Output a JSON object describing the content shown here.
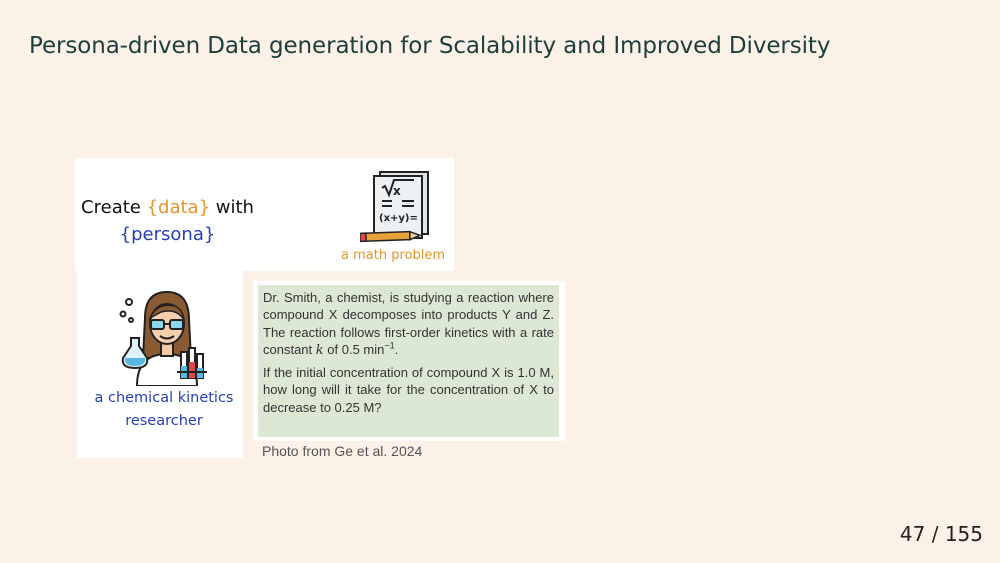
{
  "slide": {
    "title": "Persona-driven Data generation for Scalability and Improved Diversity",
    "page_current": "47",
    "page_sep": " / ",
    "page_total": "155"
  },
  "figure": {
    "create_prefix": "Create ",
    "data_token": "{data}",
    "with_word": " with",
    "persona_token": "{persona}",
    "data_example_label": "a math problem",
    "persona_label_line1": "a chemical kinetics",
    "persona_label_line2": "researcher",
    "doc_icon_text": "(x+y)=",
    "problem": {
      "para1_pre": "Dr. Smith, a chemist, is studying a reaction where compound X decomposes into products Y and Z. The reaction follows first-order kinetics with a rate constant ",
      "para1_k": "k",
      "para1_mid": " of 0.5 min",
      "para1_sup": "−1",
      "para1_end": ".",
      "para2": "If the initial concentration of compound X is 1.0 M, how long will it take for the concentration of X to decrease to 0.25 M?"
    },
    "caption": "Photo from Ge et al. 2024"
  },
  "icons": {
    "math_doc": "math-document-icon",
    "scientist": "scientist-icon"
  }
}
